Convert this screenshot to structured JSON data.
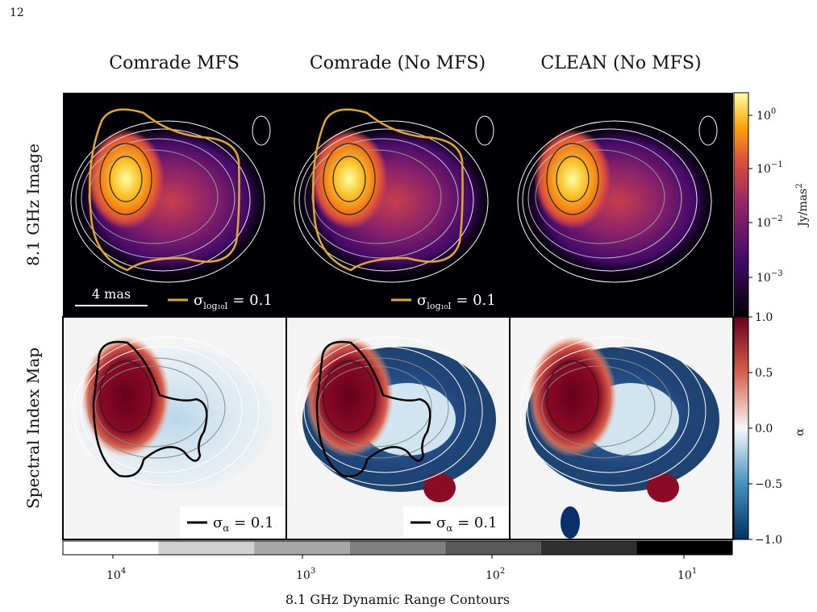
{
  "page_number": "12",
  "columns": [
    "Comrade MFS",
    "Comrade (No MFS)",
    "CLEAN (No MFS)"
  ],
  "rows": [
    "8.1 GHz Image",
    "Spectral Index Map"
  ],
  "scale_bar": "4 mas",
  "image_legend": {
    "symbol": "σ",
    "subscript": "log₁₀I",
    "text": " = 0.1"
  },
  "alpha_legend": {
    "symbol": "σ",
    "subscript": "α",
    "text": " = 0.1"
  },
  "intensity_colorbar": {
    "label": "Jy/mas",
    "label_superscript": "2",
    "ticks": [
      {
        "base": "10",
        "exponent": "0"
      },
      {
        "base": "10",
        "exponent": "−1"
      },
      {
        "base": "10",
        "exponent": "−2"
      },
      {
        "base": "10",
        "exponent": "−3"
      }
    ]
  },
  "alpha_colorbar": {
    "label": "α",
    "ticks": [
      "1.0",
      "0.5",
      "0.0",
      "−0.5",
      "−1.0"
    ]
  },
  "contour_colorbar": {
    "label": "8.1 GHz Dynamic Range Contours",
    "ticks": [
      {
        "base": "10",
        "exponent": "4"
      },
      {
        "base": "10",
        "exponent": "3"
      },
      {
        "base": "10",
        "exponent": "2"
      },
      {
        "base": "10",
        "exponent": "1"
      }
    ]
  }
}
